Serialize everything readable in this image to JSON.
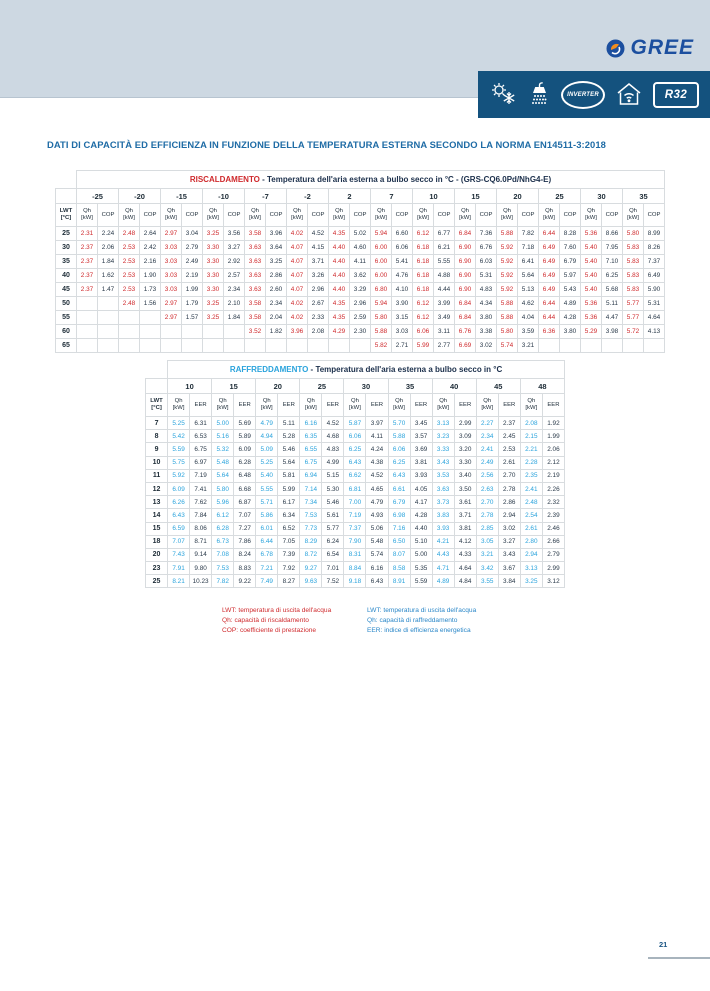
{
  "page": {
    "brand": "GREE",
    "page_number": "21"
  },
  "banner": {
    "icons": [
      "heat-cool-icon",
      "shower-icon",
      "inverter-badge",
      "house-wifi-icon",
      "r32-badge"
    ],
    "inverter_label": "INVERTER",
    "r32_label": "R32"
  },
  "title": "DATI DI CAPACITÀ ED EFFICIENZA IN FUNZIONE DELLA TEMPERATURA ESTERNA SECONDO LA NORMA EN14511-3:2018",
  "colors": {
    "heating_accent": "#cf2a2d",
    "cooling_accent": "#2aa3dc",
    "banner_navy": "#14527e",
    "title_blue": "#1e6ba5"
  },
  "heating_table": {
    "title_highlight": "RISCALDAMENTO",
    "title_rest": " - Temperatura dell'aria esterna a bulbo secco in °C - (GRS-CQ6.0Pd/NhG4-E)",
    "row_header": "LWT\n[°C]",
    "qh_label": "Qh\n[kW]",
    "eff_label": "COP",
    "temps": [
      "-25",
      "-20",
      "-15",
      "-10",
      "-7",
      "-2",
      "2",
      "7",
      "10",
      "15",
      "20",
      "25",
      "30",
      "35"
    ],
    "rows": [
      {
        "lwt": "25",
        "values": [
          [
            "2.31",
            "2.24"
          ],
          [
            "2.48",
            "2.64"
          ],
          [
            "2.97",
            "3.04"
          ],
          [
            "3.25",
            "3.56"
          ],
          [
            "3.58",
            "3.96"
          ],
          [
            "4.02",
            "4.52"
          ],
          [
            "4.35",
            "5.02"
          ],
          [
            "5.94",
            "6.60"
          ],
          [
            "6.12",
            "6.77"
          ],
          [
            "6.84",
            "7.36"
          ],
          [
            "5.88",
            "7.82"
          ],
          [
            "6.44",
            "8.28"
          ],
          [
            "5.36",
            "8.66"
          ],
          [
            "5.80",
            "8.99"
          ]
        ]
      },
      {
        "lwt": "30",
        "values": [
          [
            "2.37",
            "2.06"
          ],
          [
            "2.53",
            "2.42"
          ],
          [
            "3.03",
            "2.79"
          ],
          [
            "3.30",
            "3.27"
          ],
          [
            "3.63",
            "3.64"
          ],
          [
            "4.07",
            "4.15"
          ],
          [
            "4.40",
            "4.60"
          ],
          [
            "6.00",
            "6.06"
          ],
          [
            "6.18",
            "6.21"
          ],
          [
            "6.90",
            "6.76"
          ],
          [
            "5.92",
            "7.18"
          ],
          [
            "6.49",
            "7.60"
          ],
          [
            "5.40",
            "7.95"
          ],
          [
            "5.83",
            "8.26"
          ]
        ]
      },
      {
        "lwt": "35",
        "values": [
          [
            "2.37",
            "1.84"
          ],
          [
            "2.53",
            "2.16"
          ],
          [
            "3.03",
            "2.49"
          ],
          [
            "3.30",
            "2.92"
          ],
          [
            "3.63",
            "3.25"
          ],
          [
            "4.07",
            "3.71"
          ],
          [
            "4.40",
            "4.11"
          ],
          [
            "6.00",
            "5.41"
          ],
          [
            "6.18",
            "5.55"
          ],
          [
            "6.90",
            "6.03"
          ],
          [
            "5.92",
            "6.41"
          ],
          [
            "6.49",
            "6.79"
          ],
          [
            "5.40",
            "7.10"
          ],
          [
            "5.83",
            "7.37"
          ]
        ]
      },
      {
        "lwt": "40",
        "values": [
          [
            "2.37",
            "1.62"
          ],
          [
            "2.53",
            "1.90"
          ],
          [
            "3.03",
            "2.19"
          ],
          [
            "3.30",
            "2.57"
          ],
          [
            "3.63",
            "2.86"
          ],
          [
            "4.07",
            "3.26"
          ],
          [
            "4.40",
            "3.62"
          ],
          [
            "6.00",
            "4.76"
          ],
          [
            "6.18",
            "4.88"
          ],
          [
            "6.90",
            "5.31"
          ],
          [
            "5.92",
            "5.64"
          ],
          [
            "6.49",
            "5.97"
          ],
          [
            "5.40",
            "6.25"
          ],
          [
            "5.83",
            "6.49"
          ]
        ]
      },
      {
        "lwt": "45",
        "values": [
          [
            "2.37",
            "1.47"
          ],
          [
            "2.53",
            "1.73"
          ],
          [
            "3.03",
            "1.99"
          ],
          [
            "3.30",
            "2.34"
          ],
          [
            "3.63",
            "2.60"
          ],
          [
            "4.07",
            "2.96"
          ],
          [
            "4.40",
            "3.29"
          ],
          [
            "6.80",
            "4.10"
          ],
          [
            "6.18",
            "4.44"
          ],
          [
            "6.90",
            "4.83"
          ],
          [
            "5.92",
            "5.13"
          ],
          [
            "6.49",
            "5.43"
          ],
          [
            "5.40",
            "5.68"
          ],
          [
            "5.83",
            "5.90"
          ]
        ]
      },
      {
        "lwt": "50",
        "values": [
          null,
          [
            "2.48",
            "1.56"
          ],
          [
            "2.97",
            "1.79"
          ],
          [
            "3.25",
            "2.10"
          ],
          [
            "3.58",
            "2.34"
          ],
          [
            "4.02",
            "2.67"
          ],
          [
            "4.35",
            "2.96"
          ],
          [
            "5.94",
            "3.90"
          ],
          [
            "6.12",
            "3.99"
          ],
          [
            "6.84",
            "4.34"
          ],
          [
            "5.88",
            "4.62"
          ],
          [
            "6.44",
            "4.89"
          ],
          [
            "5.36",
            "5.11"
          ],
          [
            "5.77",
            "5.31"
          ]
        ]
      },
      {
        "lwt": "55",
        "values": [
          null,
          null,
          [
            "2.97",
            "1.57"
          ],
          [
            "3.25",
            "1.84"
          ],
          [
            "3.58",
            "2.04"
          ],
          [
            "4.02",
            "2.33"
          ],
          [
            "4.35",
            "2.59"
          ],
          [
            "5.80",
            "3.15"
          ],
          [
            "6.12",
            "3.49"
          ],
          [
            "6.84",
            "3.80"
          ],
          [
            "5.88",
            "4.04"
          ],
          [
            "6.44",
            "4.28"
          ],
          [
            "5.36",
            "4.47"
          ],
          [
            "5.77",
            "4.64"
          ]
        ]
      },
      {
        "lwt": "60",
        "values": [
          null,
          null,
          null,
          null,
          [
            "3.52",
            "1.82"
          ],
          [
            "3.96",
            "2.08"
          ],
          [
            "4.29",
            "2.30"
          ],
          [
            "5.88",
            "3.03"
          ],
          [
            "6.06",
            "3.11"
          ],
          [
            "6.76",
            "3.38"
          ],
          [
            "5.80",
            "3.59"
          ],
          [
            "6.36",
            "3.80"
          ],
          [
            "5.29",
            "3.98"
          ],
          [
            "5.72",
            "4.13"
          ]
        ]
      },
      {
        "lwt": "65",
        "values": [
          null,
          null,
          null,
          null,
          null,
          null,
          null,
          [
            "5.82",
            "2.71"
          ],
          [
            "5.99",
            "2.77"
          ],
          [
            "6.69",
            "3.02"
          ],
          [
            "5.74",
            "3.21"
          ],
          null,
          null,
          null
        ]
      }
    ]
  },
  "cooling_table": {
    "title_highlight": "RAFFREDDAMENTO",
    "title_rest": " - Temperatura dell'aria esterna a bulbo secco in °C",
    "row_header": "LWT\n[°C]",
    "qh_label": "Qh\n[kW]",
    "eff_label": "EER",
    "temps": [
      "10",
      "15",
      "20",
      "25",
      "30",
      "35",
      "40",
      "45",
      "48"
    ],
    "rows": [
      {
        "lwt": "7",
        "values": [
          [
            "5.25",
            "6.31"
          ],
          [
            "5.00",
            "5.69"
          ],
          [
            "4.79",
            "5.11"
          ],
          [
            "6.16",
            "4.52"
          ],
          [
            "5.87",
            "3.97"
          ],
          [
            "5.70",
            "3.45"
          ],
          [
            "3.13",
            "2.99"
          ],
          [
            "2.27",
            "2.37"
          ],
          [
            "2.08",
            "1.92"
          ]
        ]
      },
      {
        "lwt": "8",
        "values": [
          [
            "5.42",
            "6.53"
          ],
          [
            "5.16",
            "5.89"
          ],
          [
            "4.94",
            "5.28"
          ],
          [
            "6.35",
            "4.68"
          ],
          [
            "6.06",
            "4.11"
          ],
          [
            "5.88",
            "3.57"
          ],
          [
            "3.23",
            "3.09"
          ],
          [
            "2.34",
            "2.45"
          ],
          [
            "2.15",
            "1.99"
          ]
        ]
      },
      {
        "lwt": "9",
        "values": [
          [
            "5.59",
            "6.75"
          ],
          [
            "5.32",
            "6.09"
          ],
          [
            "5.09",
            "5.46"
          ],
          [
            "6.55",
            "4.83"
          ],
          [
            "6.25",
            "4.24"
          ],
          [
            "6.06",
            "3.69"
          ],
          [
            "3.33",
            "3.20"
          ],
          [
            "2.41",
            "2.53"
          ],
          [
            "2.21",
            "2.06"
          ]
        ]
      },
      {
        "lwt": "10",
        "values": [
          [
            "5.75",
            "6.97"
          ],
          [
            "5.48",
            "6.28"
          ],
          [
            "5.25",
            "5.64"
          ],
          [
            "6.75",
            "4.99"
          ],
          [
            "6.43",
            "4.38"
          ],
          [
            "6.25",
            "3.81"
          ],
          [
            "3.43",
            "3.30"
          ],
          [
            "2.49",
            "2.61"
          ],
          [
            "2.28",
            "2.12"
          ]
        ]
      },
      {
        "lwt": "11",
        "values": [
          [
            "5.92",
            "7.19"
          ],
          [
            "5.64",
            "6.48"
          ],
          [
            "5.40",
            "5.81"
          ],
          [
            "6.94",
            "5.15"
          ],
          [
            "6.62",
            "4.52"
          ],
          [
            "6.43",
            "3.93"
          ],
          [
            "3.53",
            "3.40"
          ],
          [
            "2.56",
            "2.70"
          ],
          [
            "2.35",
            "2.19"
          ]
        ]
      },
      {
        "lwt": "12",
        "values": [
          [
            "6.09",
            "7.41"
          ],
          [
            "5.80",
            "6.68"
          ],
          [
            "5.55",
            "5.99"
          ],
          [
            "7.14",
            "5.30"
          ],
          [
            "6.81",
            "4.65"
          ],
          [
            "6.61",
            "4.05"
          ],
          [
            "3.63",
            "3.50"
          ],
          [
            "2.63",
            "2.78"
          ],
          [
            "2.41",
            "2.26"
          ]
        ]
      },
      {
        "lwt": "13",
        "values": [
          [
            "6.26",
            "7.62"
          ],
          [
            "5.96",
            "6.87"
          ],
          [
            "5.71",
            "6.17"
          ],
          [
            "7.34",
            "5.46"
          ],
          [
            "7.00",
            "4.79"
          ],
          [
            "6.79",
            "4.17"
          ],
          [
            "3.73",
            "3.61"
          ],
          [
            "2.70",
            "2.86"
          ],
          [
            "2.48",
            "2.32"
          ]
        ]
      },
      {
        "lwt": "14",
        "values": [
          [
            "6.43",
            "7.84"
          ],
          [
            "6.12",
            "7.07"
          ],
          [
            "5.86",
            "6.34"
          ],
          [
            "7.53",
            "5.61"
          ],
          [
            "7.19",
            "4.93"
          ],
          [
            "6.98",
            "4.28"
          ],
          [
            "3.83",
            "3.71"
          ],
          [
            "2.78",
            "2.94"
          ],
          [
            "2.54",
            "2.39"
          ]
        ]
      },
      {
        "lwt": "15",
        "values": [
          [
            "6.59",
            "8.06"
          ],
          [
            "6.28",
            "7.27"
          ],
          [
            "6.01",
            "6.52"
          ],
          [
            "7.73",
            "5.77"
          ],
          [
            "7.37",
            "5.06"
          ],
          [
            "7.16",
            "4.40"
          ],
          [
            "3.93",
            "3.81"
          ],
          [
            "2.85",
            "3.02"
          ],
          [
            "2.61",
            "2.46"
          ]
        ]
      },
      {
        "lwt": "18",
        "values": [
          [
            "7.07",
            "8.71"
          ],
          [
            "6.73",
            "7.86"
          ],
          [
            "6.44",
            "7.05"
          ],
          [
            "8.29",
            "6.24"
          ],
          [
            "7.90",
            "5.48"
          ],
          [
            "6.50",
            "5.10"
          ],
          [
            "4.21",
            "4.12"
          ],
          [
            "3.05",
            "3.27"
          ],
          [
            "2.80",
            "2.66"
          ]
        ]
      },
      {
        "lwt": "20",
        "values": [
          [
            "7.43",
            "9.14"
          ],
          [
            "7.08",
            "8.24"
          ],
          [
            "6.78",
            "7.39"
          ],
          [
            "8.72",
            "6.54"
          ],
          [
            "8.31",
            "5.74"
          ],
          [
            "8.07",
            "5.00"
          ],
          [
            "4.43",
            "4.33"
          ],
          [
            "3.21",
            "3.43"
          ],
          [
            "2.94",
            "2.79"
          ]
        ]
      },
      {
        "lwt": "23",
        "values": [
          [
            "7.91",
            "9.80"
          ],
          [
            "7.53",
            "8.83"
          ],
          [
            "7.21",
            "7.92"
          ],
          [
            "9.27",
            "7.01"
          ],
          [
            "8.84",
            "6.16"
          ],
          [
            "8.58",
            "5.35"
          ],
          [
            "4.71",
            "4.64"
          ],
          [
            "3.42",
            "3.67"
          ],
          [
            "3.13",
            "2.99"
          ]
        ]
      },
      {
        "lwt": "25",
        "values": [
          [
            "8.21",
            "10.23"
          ],
          [
            "7.82",
            "9.22"
          ],
          [
            "7.49",
            "8.27"
          ],
          [
            "9.63",
            "7.52"
          ],
          [
            "9.18",
            "6.43"
          ],
          [
            "8.91",
            "5.59"
          ],
          [
            "4.89",
            "4.84"
          ],
          [
            "3.55",
            "3.84"
          ],
          [
            "3.25",
            "3.12"
          ]
        ]
      }
    ]
  },
  "heating_legend": [
    "LWT: temperatura di uscita dell'acqua",
    "Qh: capacità di riscaldamento",
    "COP: coefficiente di prestazione"
  ],
  "cooling_legend": [
    "LWT: temperatura di uscita dell'acqua",
    "Qh: capacità di raffreddamento",
    "EER: indice di efficienza energetica"
  ]
}
